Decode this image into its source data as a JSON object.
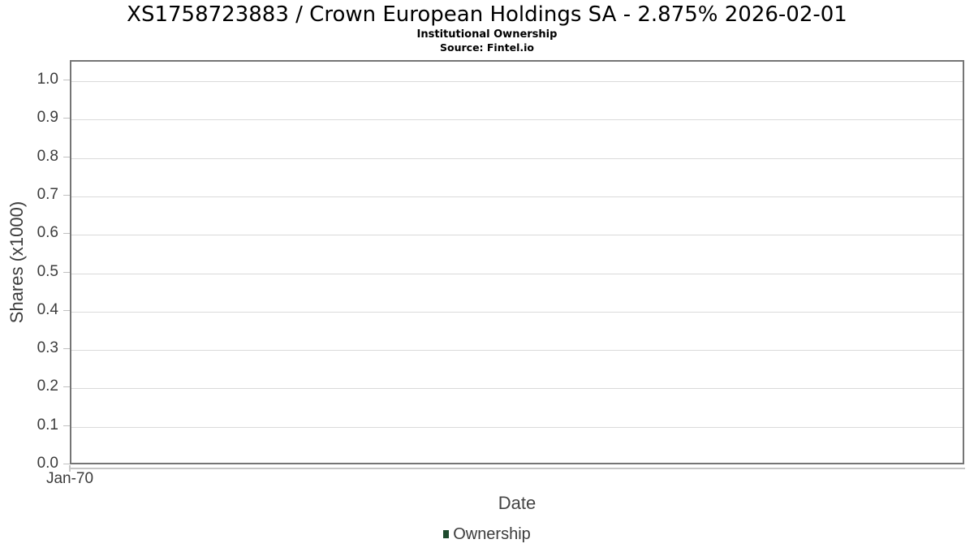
{
  "chart_data": {
    "type": "line",
    "title": "XS1758723883 / Crown European Holdings SA - 2.875% 2026-02-01",
    "subtitle": "Institutional Ownership",
    "source": "Source: Fintel.io",
    "xlabel": "Date",
    "ylabel": "Shares (x1000)",
    "x_ticks": [
      "Jan-70"
    ],
    "y_ticks": [
      "0.0",
      "0.1",
      "0.2",
      "0.3",
      "0.4",
      "0.5",
      "0.6",
      "0.7",
      "0.8",
      "0.9",
      "1.0"
    ],
    "ylim": [
      0,
      1.05
    ],
    "grid": true,
    "legend": {
      "position": "bottom",
      "entries": [
        {
          "label": "Ownership",
          "color": "#1d4a2d"
        }
      ]
    },
    "series": [
      {
        "name": "Ownership",
        "x": [],
        "values": []
      }
    ],
    "colors": {
      "plot_border": "#757575",
      "gridline": "#dadada",
      "tick": "#c0c0c0",
      "axis_line": "#c6c6c6",
      "axis_text": "#3c3c3c",
      "title_text": "#000000",
      "background": "#ffffff"
    }
  }
}
